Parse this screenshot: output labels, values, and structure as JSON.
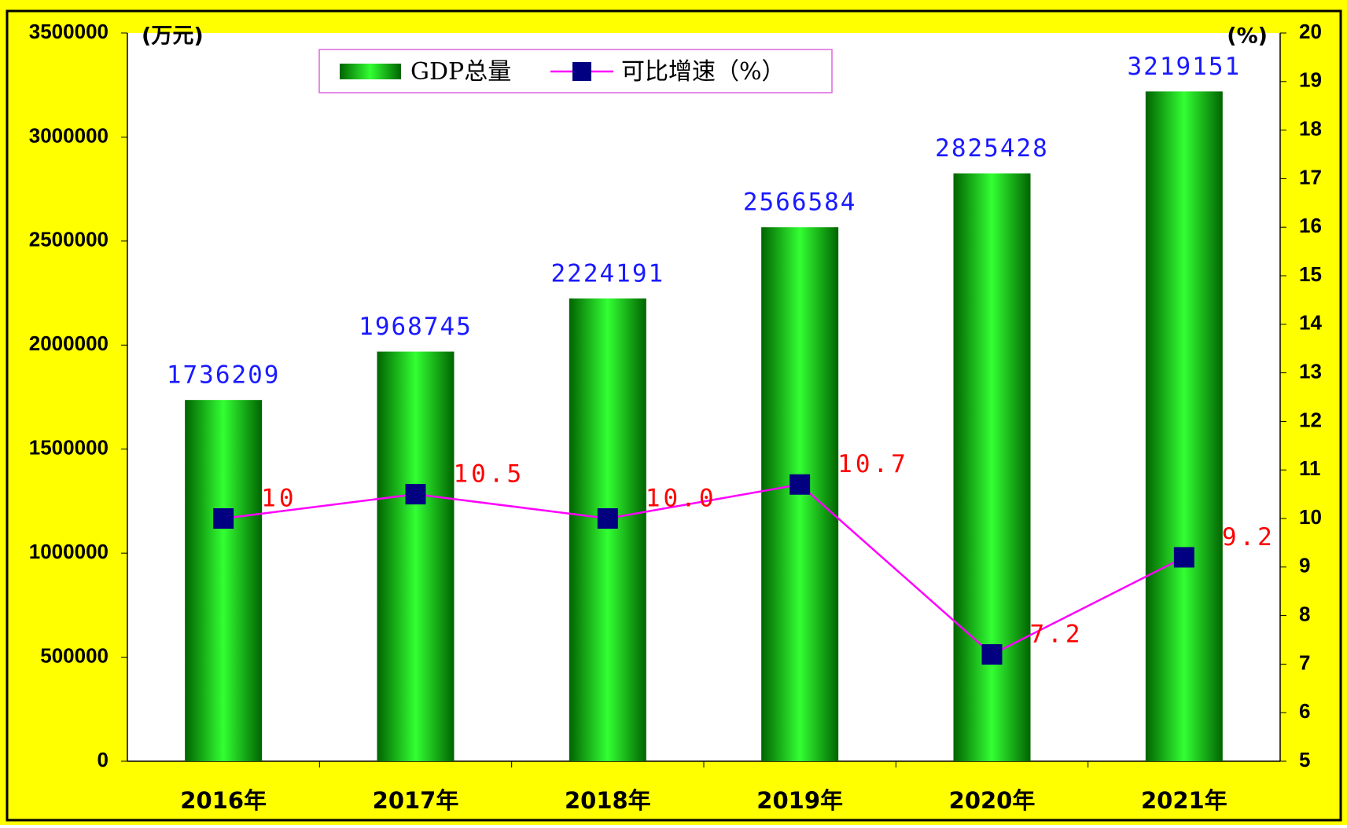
{
  "chart_data": {
    "type": "bar",
    "y_unit": "(万元)",
    "y2_unit": "(%)",
    "categories": [
      "2016年",
      "2017年",
      "2018年",
      "2019年",
      "2020年",
      "2021年"
    ],
    "series": [
      {
        "name": "GDP总量",
        "type": "bar",
        "color": "#00cc00",
        "values": [
          1736209,
          1968745,
          2224191,
          2566584,
          2825428,
          3219151
        ]
      },
      {
        "name": "可比增速（%）",
        "type": "line",
        "axis": "y2",
        "color": "#ff00ff",
        "marker_color": "#000080",
        "values": [
          10,
          10.5,
          10.0,
          10.7,
          7.2,
          9.2
        ],
        "value_labels": [
          "10",
          "10.5",
          "10.0",
          "10.7",
          "7.2",
          "9.2"
        ]
      }
    ],
    "ylim": [
      0,
      3500000
    ],
    "yticks": [
      0,
      500000,
      1000000,
      1500000,
      2000000,
      2500000,
      3000000,
      3500000
    ],
    "y2lim": [
      5,
      20
    ],
    "y2ticks": [
      5,
      6,
      7,
      8,
      9,
      10,
      11,
      12,
      13,
      14,
      15,
      16,
      17,
      18,
      19,
      20
    ],
    "legend": "top"
  }
}
